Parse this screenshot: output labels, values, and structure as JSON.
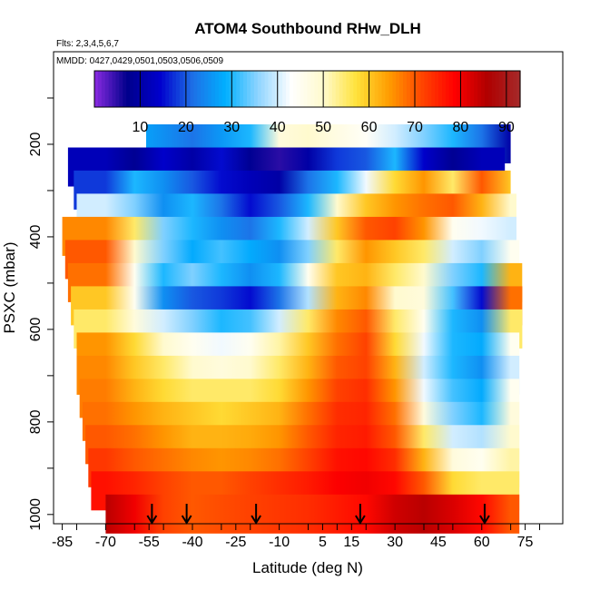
{
  "chart_data": {
    "type": "heatmap",
    "title": "ATOM4 Southbound RHw_DLH",
    "subtitle_flights": "Flts: 2,3,4,5,6,7",
    "subtitle_dates": "MMDD: 0427,0429,0501,0503,0506,0509",
    "xlabel": "Latitude (deg N)",
    "ylabel": "PSXC (mbar)",
    "xlim": [
      -88,
      88
    ],
    "ylim": [
      1020,
      0
    ],
    "x_tick_labels": [
      "-85",
      "-70",
      "-55",
      "-40",
      "-25",
      "-10",
      "5",
      "15",
      "30",
      "45",
      "60",
      "75"
    ],
    "x_tick_values": [
      -85,
      -70,
      -55,
      -40,
      -25,
      -10,
      5,
      15,
      30,
      45,
      60,
      75
    ],
    "y_tick_labels": [
      "200",
      "400",
      "600",
      "800",
      "1000"
    ],
    "y_tick_values": [
      200,
      400,
      600,
      800,
      1000
    ],
    "colorbar": {
      "range": [
        0,
        93
      ],
      "tick_labels": [
        "10",
        "20",
        "30",
        "40",
        "50",
        "60",
        "70",
        "80",
        "90"
      ],
      "tick_values": [
        10,
        20,
        30,
        40,
        50,
        60,
        70,
        80,
        90
      ],
      "colors": [
        "#8b2be2",
        "#00008b",
        "#0000cd",
        "#1e6fe6",
        "#00b0ff",
        "#8fd4ff",
        "#ffffff",
        "#fffacd",
        "#ffe23a",
        "#ff9c00",
        "#ff4500",
        "#ff0000",
        "#b00000",
        "#a52a2a"
      ]
    },
    "profile_arrows_lat": [
      -54,
      -42,
      -18,
      18,
      61
    ],
    "latitudes": [
      -70,
      -60,
      -50,
      -40,
      -30,
      -20,
      -10,
      0,
      10,
      20,
      30,
      40,
      50,
      60,
      70
    ],
    "levels": [
      {
        "p": 200,
        "lat_range": [
          -56,
          70
        ],
        "values": [
          null,
          28,
          25,
          22,
          26,
          30,
          48,
          50,
          47,
          44,
          40,
          35,
          30,
          22,
          10
        ]
      },
      {
        "p": 250,
        "lat_range": [
          -83,
          68
        ],
        "values": [
          12,
          8,
          14,
          10,
          15,
          8,
          5,
          10,
          18,
          20,
          30,
          14,
          8,
          12,
          12
        ]
      },
      {
        "p": 300,
        "lat_range": [
          -81,
          70
        ],
        "values": [
          18,
          30,
          25,
          20,
          15,
          12,
          10,
          22,
          30,
          42,
          58,
          65,
          55,
          70,
          60
        ]
      },
      {
        "p": 350,
        "lat_range": [
          -80,
          72
        ],
        "values": [
          40,
          35,
          25,
          30,
          22,
          15,
          20,
          30,
          50,
          60,
          65,
          68,
          70,
          62,
          50
        ]
      },
      {
        "p": 400,
        "lat_range": [
          -85,
          72
        ],
        "values": [
          66,
          55,
          35,
          30,
          25,
          22,
          30,
          40,
          60,
          70,
          72,
          65,
          45,
          42,
          40
        ]
      },
      {
        "p": 450,
        "lat_range": [
          -84,
          73
        ],
        "values": [
          70,
          50,
          35,
          28,
          32,
          28,
          25,
          35,
          55,
          65,
          60,
          55,
          40,
          35,
          45
        ]
      },
      {
        "p": 500,
        "lat_range": [
          -83,
          74
        ],
        "values": [
          68,
          45,
          30,
          35,
          30,
          25,
          30,
          45,
          60,
          62,
          55,
          50,
          35,
          30,
          62
        ]
      },
      {
        "p": 550,
        "lat_range": [
          -82,
          74
        ],
        "values": [
          60,
          45,
          25,
          20,
          18,
          15,
          22,
          38,
          62,
          66,
          50,
          48,
          32,
          15,
          68
        ]
      },
      {
        "p": 600,
        "lat_range": [
          -81,
          74
        ],
        "values": [
          55,
          48,
          40,
          35,
          30,
          32,
          40,
          55,
          66,
          70,
          55,
          45,
          30,
          25,
          55
        ]
      },
      {
        "p": 650,
        "lat_range": [
          -80,
          73
        ],
        "values": [
          65,
          58,
          50,
          45,
          42,
          45,
          52,
          60,
          68,
          72,
          58,
          42,
          30,
          28,
          45
        ]
      },
      {
        "p": 700,
        "lat_range": [
          -80,
          73
        ],
        "values": [
          66,
          60,
          55,
          50,
          48,
          50,
          55,
          62,
          70,
          72,
          62,
          40,
          30,
          25,
          40
        ]
      },
      {
        "p": 750,
        "lat_range": [
          -79,
          73
        ],
        "values": [
          67,
          62,
          58,
          55,
          55,
          55,
          58,
          65,
          72,
          74,
          65,
          42,
          32,
          28,
          45
        ]
      },
      {
        "p": 800,
        "lat_range": [
          -78,
          73
        ],
        "values": [
          68,
          65,
          62,
          60,
          58,
          60,
          62,
          68,
          74,
          75,
          68,
          48,
          35,
          30,
          48
        ]
      },
      {
        "p": 850,
        "lat_range": [
          -77,
          73
        ],
        "values": [
          70,
          68,
          65,
          62,
          62,
          63,
          65,
          70,
          75,
          76,
          70,
          55,
          40,
          38,
          50
        ]
      },
      {
        "p": 900,
        "lat_range": [
          -76,
          73
        ],
        "values": [
          73,
          70,
          68,
          66,
          65,
          66,
          68,
          72,
          77,
          78,
          74,
          62,
          48,
          45,
          52
        ]
      },
      {
        "p": 950,
        "lat_range": [
          -75,
          73
        ],
        "values": [
          77,
          75,
          72,
          70,
          70,
          72,
          74,
          76,
          79,
          80,
          78,
          70,
          58,
          55,
          55
        ]
      },
      {
        "p": 1000,
        "lat_range": [
          -70,
          73
        ],
        "values": [
          85,
          80,
          72,
          70,
          71,
          72,
          73,
          74,
          76,
          78,
          83,
          85,
          82,
          78,
          70
        ]
      }
    ]
  }
}
